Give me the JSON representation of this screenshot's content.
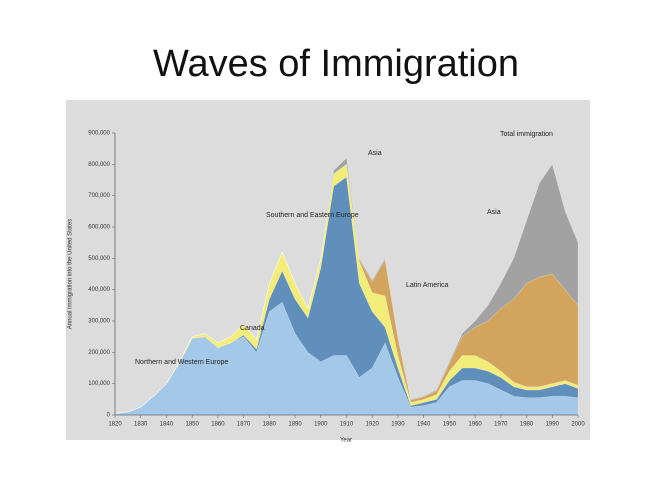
{
  "chart_data": {
    "type": "stacked_area",
    "title": "Waves of Immigration",
    "x_label": "Year",
    "y_label": "Annual immigration into the United States",
    "annotations": [
      "Total immigration"
    ],
    "x": [
      1820,
      1825,
      1830,
      1835,
      1840,
      1845,
      1850,
      1855,
      1860,
      1865,
      1870,
      1875,
      1880,
      1885,
      1890,
      1895,
      1900,
      1905,
      1910,
      1915,
      1920,
      1925,
      1930,
      1935,
      1940,
      1945,
      1950,
      1955,
      1960,
      1965,
      1970,
      1975,
      1980,
      1985,
      1990,
      1995,
      2000
    ],
    "series": [
      {
        "name": "Northern and Western Europe",
        "color": "#a4c8e8",
        "values": [
          5000,
          10000,
          25000,
          60000,
          100000,
          165000,
          245000,
          250000,
          215000,
          230000,
          250000,
          200000,
          330000,
          360000,
          260000,
          200000,
          170000,
          190000,
          190000,
          120000,
          150000,
          230000,
          120000,
          25000,
          30000,
          40000,
          90000,
          110000,
          110000,
          100000,
          80000,
          60000,
          55000,
          55000,
          60000,
          60000,
          55000
        ]
      },
      {
        "name": "Southern and Eastern Europe",
        "color": "#5f8fba",
        "values": [
          0,
          0,
          0,
          0,
          0,
          0,
          0,
          0,
          0,
          0,
          5000,
          10000,
          40000,
          100000,
          110000,
          110000,
          300000,
          540000,
          570000,
          300000,
          180000,
          50000,
          30000,
          5000,
          10000,
          10000,
          20000,
          40000,
          40000,
          40000,
          40000,
          30000,
          25000,
          25000,
          30000,
          40000,
          30000
        ]
      },
      {
        "name": "Canada",
        "color": "#f2ec78",
        "values": [
          0,
          0,
          0,
          0,
          0,
          5000,
          5000,
          10000,
          15000,
          20000,
          35000,
          30000,
          50000,
          60000,
          50000,
          30000,
          30000,
          40000,
          40000,
          70000,
          60000,
          100000,
          40000,
          10000,
          10000,
          15000,
          30000,
          40000,
          40000,
          30000,
          20000,
          15000,
          10000,
          10000,
          10000,
          10000,
          10000
        ]
      },
      {
        "name": "Latin America",
        "color": "#d3a45c",
        "values": [
          0,
          0,
          0,
          0,
          0,
          0,
          0,
          0,
          0,
          0,
          0,
          0,
          0,
          0,
          0,
          0,
          0,
          0,
          0,
          5000,
          35000,
          115000,
          55000,
          8000,
          8000,
          12000,
          25000,
          60000,
          90000,
          130000,
          200000,
          265000,
          330000,
          350000,
          350000,
          290000,
          255000
        ]
      },
      {
        "name": "Asia",
        "color": "#a2a2a2",
        "values": [
          0,
          0,
          0,
          0,
          0,
          0,
          0,
          0,
          0,
          0,
          0,
          0,
          0,
          0,
          0,
          0,
          0,
          10000,
          20000,
          5000,
          5000,
          5000,
          5000,
          2000,
          2000,
          3000,
          5000,
          10000,
          20000,
          50000,
          80000,
          130000,
          200000,
          300000,
          350000,
          250000,
          200000
        ]
      }
    ],
    "xlim": [
      1820,
      2000
    ],
    "xticks": [
      1820,
      1830,
      1840,
      1850,
      1860,
      1870,
      1880,
      1890,
      1900,
      1910,
      1920,
      1930,
      1940,
      1950,
      1960,
      1970,
      1980,
      1990,
      2000
    ],
    "ylim": [
      0,
      900000
    ],
    "yticks": [
      0,
      {
        "value": 100000,
        "label": "100,000"
      },
      {
        "value": 200000,
        "label": "200,000"
      },
      {
        "value": 300000,
        "label": "300,000"
      },
      {
        "value": 400000,
        "label": "400,000"
      },
      {
        "value": 500000,
        "label": "500,000"
      },
      {
        "value": 600000,
        "label": "600,000"
      },
      {
        "value": 700000,
        "label": "700,000"
      },
      {
        "value": 800000,
        "label": "800,000"
      },
      {
        "value": 900000,
        "label": "900,000"
      }
    ]
  }
}
